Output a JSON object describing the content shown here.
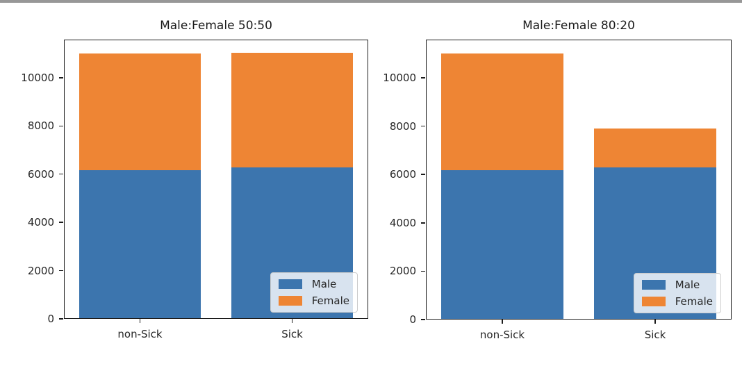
{
  "ui": {
    "background_color": "#ffffff",
    "top_strip_color": "#979797",
    "text_color": "#262626",
    "spine_color": "#1c1c1c",
    "legend_background": "rgba(255,255,255,0.8)",
    "legend_border_color": "#cccccc"
  },
  "colors": {
    "male": "#3c75ae",
    "female": "#ee8534"
  },
  "chart_data": [
    {
      "type": "bar",
      "stacked": true,
      "title": "Male:Female 50:50",
      "categories": [
        "non-Sick",
        "Sick"
      ],
      "series": [
        {
          "name": "Male",
          "color": "#3c75ae",
          "values": [
            6170,
            6280
          ]
        },
        {
          "name": "Female",
          "color": "#ee8534",
          "values": [
            4830,
            4750
          ]
        }
      ],
      "totals": [
        11000,
        11030
      ],
      "ylim": [
        0,
        11580
      ],
      "yticks": [
        0,
        2000,
        4000,
        6000,
        8000,
        10000
      ],
      "grid": false,
      "legend_position": "lower right",
      "legend_labels": [
        "Male",
        "Female"
      ]
    },
    {
      "type": "bar",
      "stacked": true,
      "title": "Male:Female 80:20",
      "categories": [
        "non-Sick",
        "Sick"
      ],
      "series": [
        {
          "name": "Male",
          "color": "#3c75ae",
          "values": [
            6180,
            6280
          ]
        },
        {
          "name": "Female",
          "color": "#ee8534",
          "values": [
            4840,
            1610
          ]
        }
      ],
      "totals": [
        11020,
        7890
      ],
      "ylim": [
        0,
        11580
      ],
      "yticks": [
        0,
        2000,
        4000,
        6000,
        8000,
        10000
      ],
      "grid": false,
      "legend_position": "lower right",
      "legend_labels": [
        "Male",
        "Female"
      ]
    }
  ]
}
